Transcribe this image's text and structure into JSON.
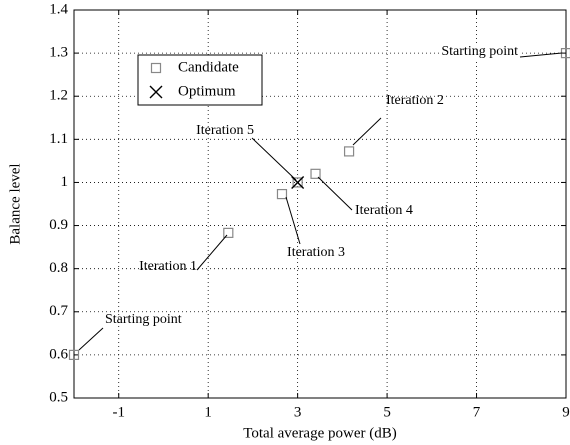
{
  "chart_data": {
    "type": "scatter",
    "xlabel": "Total average power (dB)",
    "ylabel": "Balance level",
    "xlim": [
      -2,
      9
    ],
    "ylim": [
      0.5,
      1.4
    ],
    "xticks": [
      -1,
      1,
      3,
      5,
      7,
      9
    ],
    "yticks": [
      0.5,
      0.6,
      0.7,
      0.8,
      0.9,
      1,
      1.1,
      1.2,
      1.3,
      1.4
    ],
    "grid": true,
    "legend": "upper left",
    "series": [
      {
        "name": "Candidate",
        "marker": "square",
        "color": "#888888",
        "x": [
          -2,
          1.45,
          2.65,
          3,
          3.4,
          4.15,
          9
        ],
        "values": [
          0.6,
          0.883,
          0.973,
          1.0,
          1.02,
          1.072,
          1.3
        ]
      },
      {
        "name": "Optimum",
        "marker": "x",
        "color": "#000000",
        "x": [
          3
        ],
        "values": [
          1.0
        ]
      }
    ],
    "annotations": [
      "Starting point",
      "Iteration 1",
      "Iteration 5",
      "Iteration 3",
      "Iteration 4",
      "Iteration 2",
      "Starting point"
    ]
  }
}
